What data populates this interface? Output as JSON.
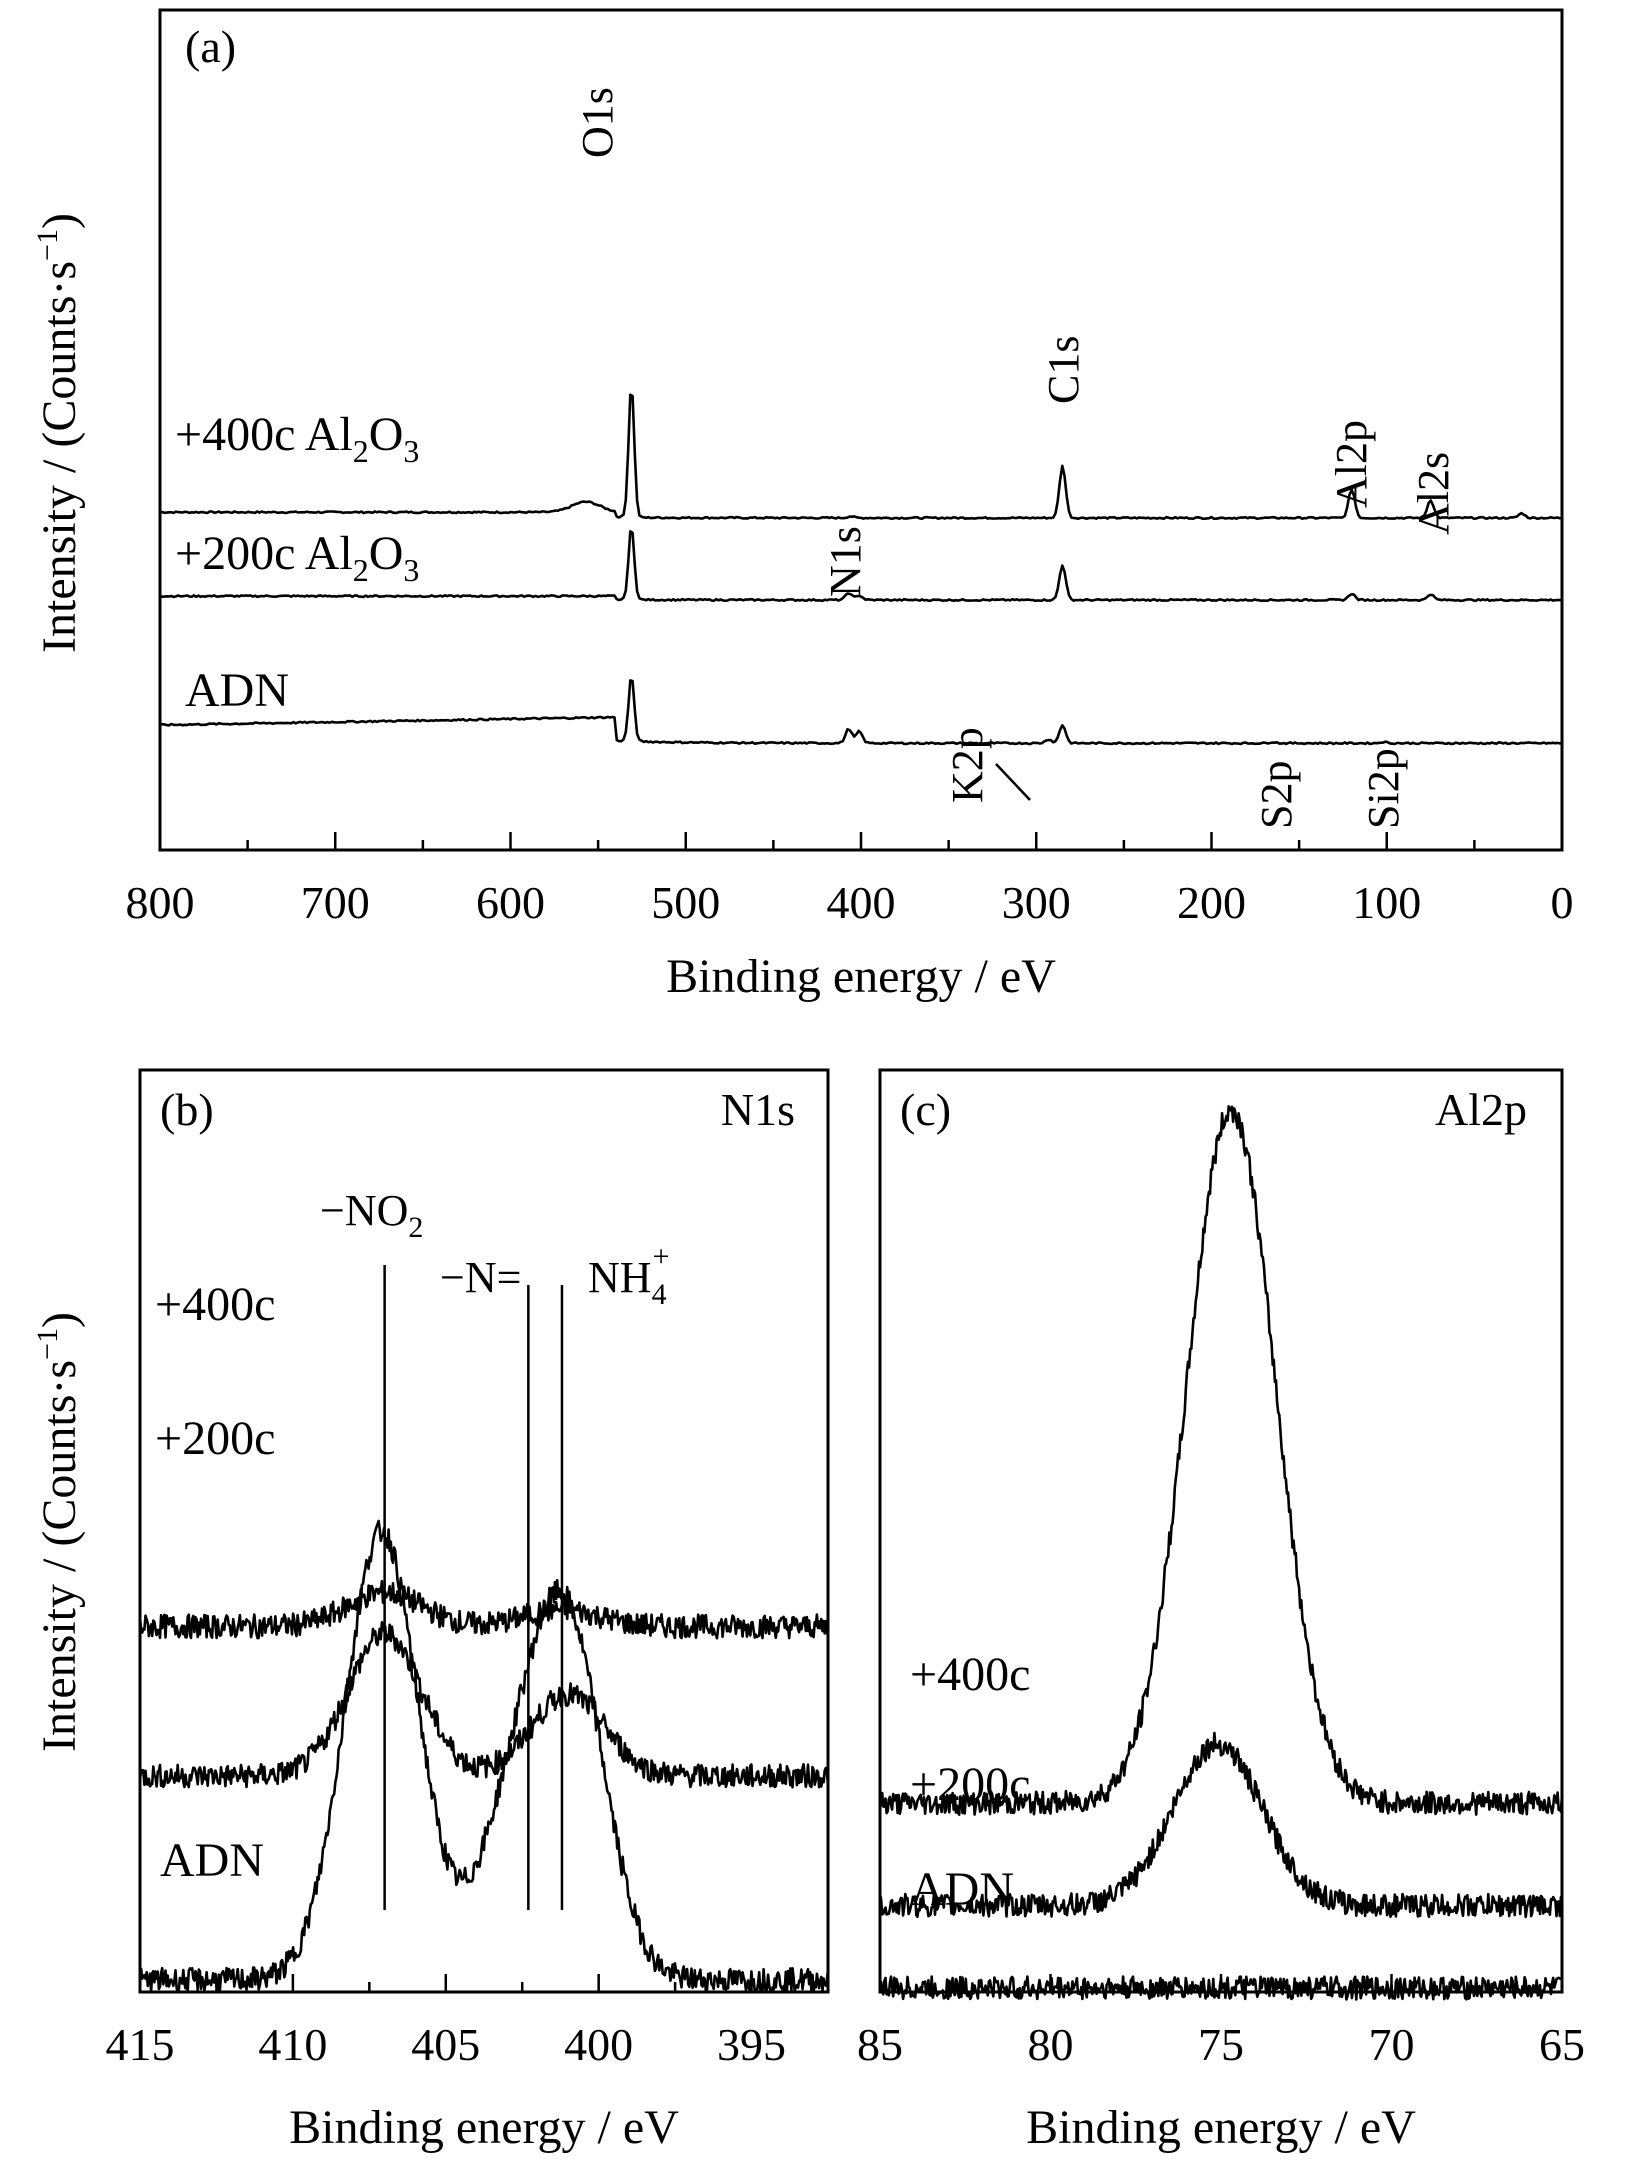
{
  "chart_data": [
    {
      "panel": "(a)",
      "type": "line",
      "xlabel": "Binding energy / eV",
      "ylabel": "Intensity / (Counts·s⁻¹)",
      "xlim": [
        800,
        0
      ],
      "x_ticks": [
        800,
        700,
        600,
        500,
        400,
        300,
        200,
        100,
        0
      ],
      "y_ticks_labeled": false,
      "grid": false,
      "peak_labels": [
        "O1s",
        "N1s",
        "C1s",
        "Al2p",
        "Al2s",
        "K2p",
        "S2p",
        "Si2p"
      ],
      "series": [
        {
          "name": "+400c Al₂O₃",
          "baseline_at_800": 0.6,
          "baseline_at_540": 0.6,
          "tail_level": 0.16,
          "peaks": [
            {
              "label": "O1s",
              "x": 531,
              "height": 10.2
            },
            {
              "label": "shoulder",
              "x": 557,
              "height": 0.8
            },
            {
              "label": "N1s",
              "x": 406,
              "height": 0.12
            },
            {
              "label": "C1s",
              "x": 285,
              "height": 4.0
            },
            {
              "label": "Al2p",
              "x": 120,
              "height": 2.2
            },
            {
              "label": "Al2s",
              "x": 75,
              "height": 1.4
            },
            {
              "label": "O2s",
              "x": 23,
              "height": 0.35
            }
          ]
        },
        {
          "name": "+200c Al₂O₃",
          "baseline_at_800": 0.3,
          "baseline_at_540": 0.3,
          "tail_level": 0.0,
          "peaks": [
            {
              "label": "O1s",
              "x": 531,
              "height": 5.6
            },
            {
              "label": "N1s NO2",
              "x": 407,
              "height": 0.55
            },
            {
              "label": "N1s NH4",
              "x": 401,
              "height": 0.35
            },
            {
              "label": "C1s",
              "x": 285,
              "height": 2.7
            },
            {
              "label": "Al2p",
              "x": 120,
              "height": 0.5
            },
            {
              "label": "Al2s",
              "x": 75,
              "height": 0.45
            }
          ]
        },
        {
          "name": "ADN",
          "baseline_at_800": 0.0,
          "baseline_at_540": 0.6,
          "tail_level": -1.4,
          "peaks": [
            {
              "label": "O1s",
              "x": 531,
              "height": 5.0
            },
            {
              "label": "N1s NO2",
              "x": 407,
              "height": 1.1
            },
            {
              "label": "N1s NH4",
              "x": 401,
              "height": 0.9
            },
            {
              "label": "C1s",
              "x": 285,
              "height": 1.4
            },
            {
              "label": "K2p",
              "x": 293,
              "height": 0.3
            },
            {
              "label": "S2p",
              "x": 165,
              "height": 0.1
            },
            {
              "label": "Si2p",
              "x": 102,
              "height": 0.1
            }
          ]
        }
      ]
    },
    {
      "panel": "(b)",
      "title": "N1s",
      "type": "line",
      "xlabel": "Binding energy / eV",
      "ylabel": "Intensity / (Counts·s⁻¹)",
      "xlim": [
        415,
        392.5
      ],
      "x_ticks": [
        415,
        410,
        405,
        400,
        395
      ],
      "reference_lines": [
        {
          "label": "−NO₂",
          "x": 407.0
        },
        {
          "label": "−N=",
          "x": 402.3
        },
        {
          "label": "NH₄⁺",
          "x": 401.2
        }
      ],
      "series": [
        {
          "name": "+400c",
          "offset": 5.2,
          "peaks": [
            {
              "x": 407.0,
              "height": 0.5
            },
            {
              "x": 401.2,
              "height": 0.25
            }
          ]
        },
        {
          "name": "+200c",
          "offset": 3.0,
          "peaks": [
            {
              "x": 407.0,
              "height": 2.1
            },
            {
              "x": 401.0,
              "height": 1.2
            }
          ]
        },
        {
          "name": "ADN",
          "offset": 0.0,
          "peaks": [
            {
              "x": 407.1,
              "height": 6.6
            },
            {
              "x": 402.8,
              "height": 2.1
            },
            {
              "x": 401.0,
              "height": 4.9
            }
          ]
        }
      ]
    },
    {
      "panel": "(c)",
      "title": "Al2p",
      "type": "line",
      "xlabel": "Binding energy / eV",
      "xlim": [
        85,
        65
      ],
      "x_ticks": [
        85,
        80,
        75,
        70,
        65
      ],
      "series": [
        {
          "name": "+400c",
          "offset": 2.8,
          "peaks": [
            {
              "x": 74.7,
              "height": 10.5
            }
          ]
        },
        {
          "name": "+200c",
          "offset": 1.25,
          "peaks": [
            {
              "x": 75.1,
              "height": 2.45
            }
          ]
        },
        {
          "name": "ADN",
          "offset": 0.0,
          "peaks": []
        }
      ]
    }
  ],
  "labels": {
    "a_tag": "(a)",
    "b_tag": "(b)",
    "c_tag": "(c)",
    "b_title": "N1s",
    "c_title": "Al2p",
    "xlabel": "Binding energy / eV",
    "ylabel_main": "Intensity / (Counts·s",
    "ylabel_sup": "−1",
    "ylabel_end": ")",
    "series_a": {
      "s400_pre": "+400c Al",
      "s400_sub2": "2",
      "s400_mid": "O",
      "s400_sub3": "3",
      "s200_pre": "+200c Al",
      "s200_sub2": "2",
      "s200_mid": "O",
      "s200_sub3": "3",
      "adn": "ADN"
    },
    "series_short": {
      "s400": "+400c",
      "s200": "+200c",
      "adn": "ADN"
    },
    "peaks_a": {
      "o1s": "O1s",
      "n1s": "N1s",
      "c1s": "C1s",
      "al2p": "Al2p",
      "al2s": "Al2s",
      "k2p": "K2p",
      "s2p": "S2p",
      "si2p": "Si2p"
    },
    "refs_b": {
      "no2_pre": "−NO",
      "no2_sub": "2",
      "neq": "−N=",
      "nh4_pre": "NH",
      "nh4_sub": "4",
      "nh4_sup": "+"
    }
  }
}
